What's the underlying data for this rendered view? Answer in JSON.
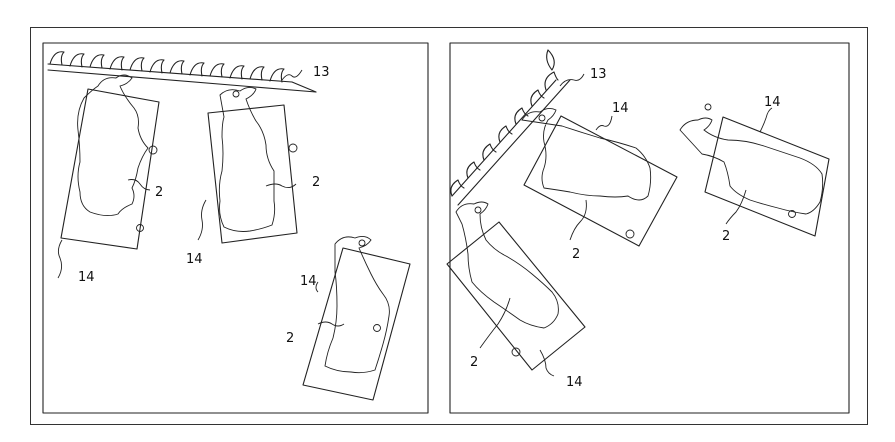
{
  "figure": {
    "left_panel": {
      "labels": {
        "rail": "13",
        "box_a": "14",
        "box_b": "14",
        "box_c": "14",
        "cow_a": "2",
        "cow_b": "2",
        "cow_c": "2"
      }
    },
    "right_panel": {
      "labels": {
        "rail": "13",
        "box_a": "14",
        "box_b": "14",
        "box_c": "14",
        "cow_a": "2",
        "cow_b": "2",
        "cow_c": "2"
      }
    }
  }
}
